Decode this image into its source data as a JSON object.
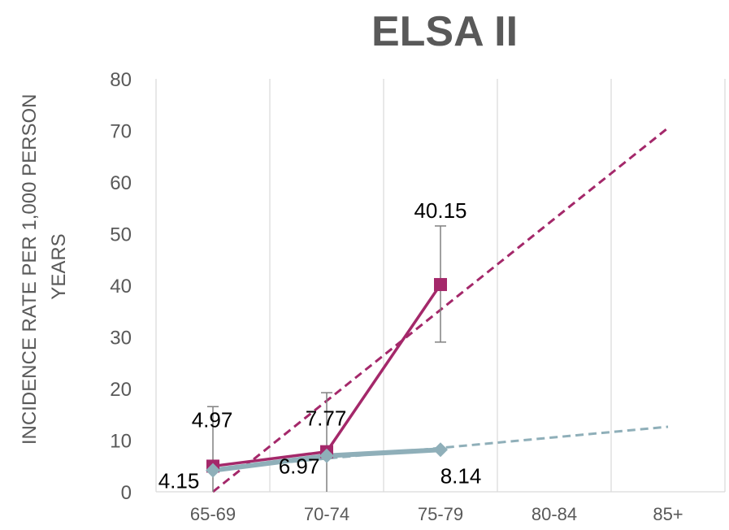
{
  "chart_data": {
    "type": "line",
    "title": "ELSA II",
    "xlabel": "",
    "ylabel_lines": [
      "INCIDENCE RATE PER 1,000 PERSON",
      "YEARS"
    ],
    "categories": [
      "65-69",
      "70-74",
      "75-79",
      "80-84",
      "85+"
    ],
    "ylim": [
      0,
      80
    ],
    "yticks": [
      0,
      10,
      20,
      30,
      40,
      50,
      60,
      70,
      80
    ],
    "grid": "vertical",
    "legend": "none",
    "series": [
      {
        "color": "#A4286A",
        "marker": "square",
        "values": [
          4.97,
          7.77,
          40.15,
          null,
          null
        ],
        "data_labels": [
          "4.97",
          "7.77",
          "40.15",
          "",
          ""
        ],
        "error_high": [
          16.5,
          19.2,
          51.5,
          null,
          null
        ],
        "error_low": [
          0,
          0,
          29.0,
          null,
          null
        ],
        "trendline": {
          "y_start": 0,
          "y_end": 70.5
        }
      },
      {
        "color": "#8FAFB9",
        "marker": "diamond",
        "values": [
          4.15,
          6.97,
          8.14,
          null,
          null
        ],
        "data_labels": [
          "4.15",
          "6.97",
          "8.14",
          "",
          ""
        ],
        "trendline": {
          "y_start": 4.4,
          "y_end": 12.6
        }
      }
    ]
  }
}
